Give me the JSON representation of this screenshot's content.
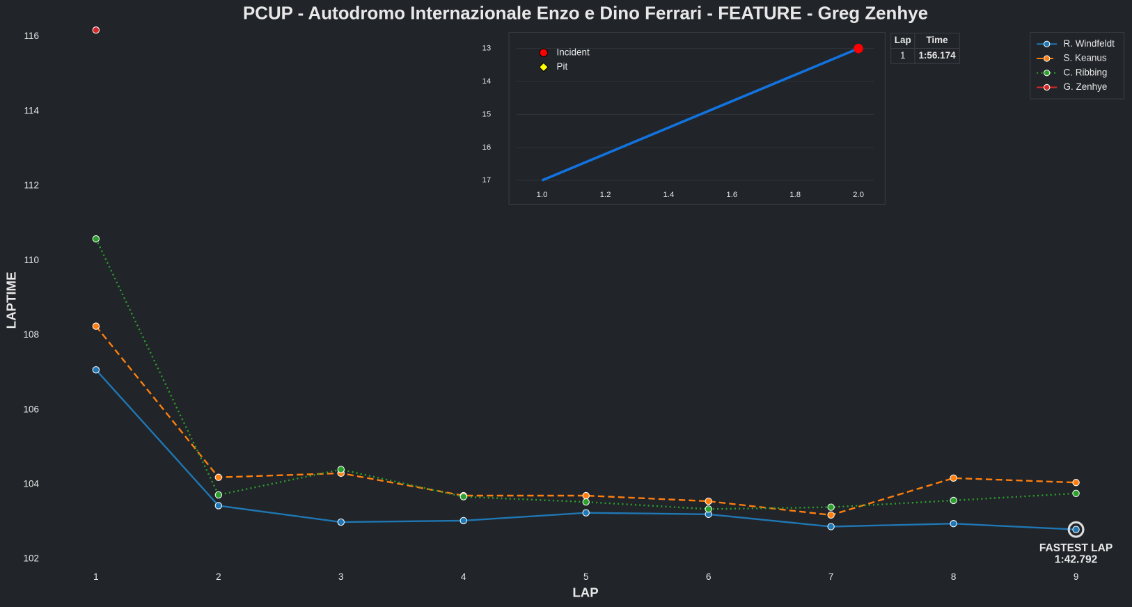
{
  "chart_data": [
    {
      "type": "line",
      "title": "PCUP - Autodromo Internazionale Enzo e Dino Ferrari - FEATURE - Greg Zenhye",
      "xlabel": "LAP",
      "ylabel": "LAPTIME",
      "x": [
        1,
        2,
        3,
        4,
        5,
        6,
        7,
        8,
        9
      ],
      "series": [
        {
          "name": "R. Windfeldt",
          "color": "#1f77b4",
          "linestyle": "solid",
          "values": [
            107.07,
            103.43,
            102.99,
            103.03,
            103.24,
            103.2,
            102.87,
            102.95,
            102.792
          ]
        },
        {
          "name": "S. Keanus",
          "color": "#ff7f0e",
          "linestyle": "dashed",
          "values": [
            108.24,
            104.19,
            104.3,
            103.7,
            103.7,
            103.55,
            103.18,
            104.17,
            104.05
          ]
        },
        {
          "name": "C. Ribbing",
          "color": "#2ca02c",
          "linestyle": "dotted",
          "values": [
            110.58,
            103.72,
            104.4,
            103.67,
            103.53,
            103.34,
            103.39,
            103.57,
            103.76
          ]
        },
        {
          "name": "G. Zenhye",
          "color": "#d62728",
          "linestyle": "solid",
          "values": [
            116.174,
            null,
            null,
            null,
            null,
            null,
            null,
            null,
            null
          ]
        }
      ],
      "xlim": [
        0.57,
        9.41
      ],
      "ylim": [
        101.7,
        116.4
      ],
      "xticks": [
        1,
        2,
        3,
        4,
        5,
        6,
        7,
        8,
        9
      ],
      "yticks": [
        102,
        104,
        106,
        108,
        110,
        112,
        114,
        116
      ],
      "grid": false,
      "legend": "upper right",
      "annotations": [
        "FASTEST LAP",
        "1:42.792"
      ]
    },
    {
      "type": "line",
      "x": [
        1,
        2
      ],
      "values": [
        17,
        13
      ],
      "color": "#1273de",
      "xlim": [
        0.9,
        2.05
      ],
      "ylim": [
        12.8,
        17.2
      ],
      "y_inverted": true,
      "xticks": [
        {
          "value": 1,
          "label": "1.0"
        },
        {
          "value": 1.2,
          "label": "1.2"
        },
        {
          "value": 1.4,
          "label": "1.4"
        },
        {
          "value": 1.6,
          "label": "1.6"
        },
        {
          "value": 1.8,
          "label": "1.8"
        },
        {
          "value": 2,
          "label": "2.0"
        }
      ],
      "yticks": [
        13,
        14,
        15,
        16,
        17
      ],
      "grid": true,
      "legend": "upper left",
      "incidents": [
        {
          "x": 2,
          "y": 13,
          "color": "#ff0000"
        }
      ],
      "legend_items": [
        {
          "name": "Incident",
          "color": "#ff0000",
          "marker": "circle"
        },
        {
          "name": "Pit",
          "color": "#ffff00",
          "marker": "diamond"
        }
      ]
    }
  ],
  "table": {
    "columns": [
      "Lap",
      "Time"
    ],
    "rows": [
      [
        1,
        "1:56.174"
      ]
    ]
  }
}
